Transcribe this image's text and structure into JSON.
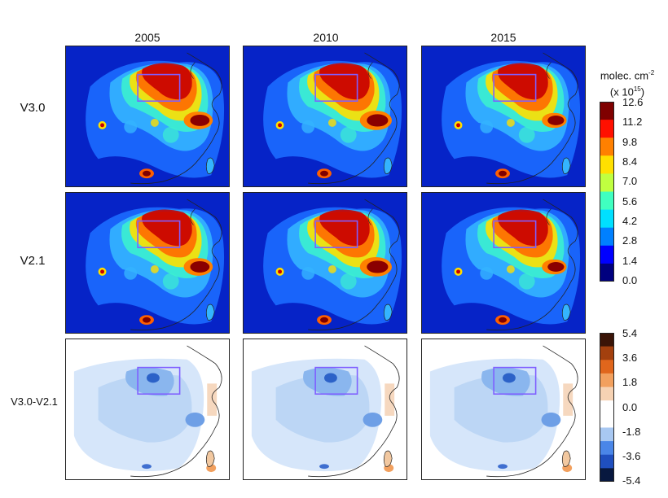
{
  "chart_data": {
    "type": "heatmap",
    "columns": [
      "2005",
      "2010",
      "2015"
    ],
    "rows": [
      "V3.0",
      "V2.1",
      "V3.0-V2.1"
    ],
    "colorbars": [
      {
        "title": "molec. cm",
        "title_sup": "-2",
        "subtitle": "(x 10",
        "subtitle_sup": "15",
        "subtitle_end": ")",
        "ticks": [
          "12.6",
          "11.2",
          "9.8",
          "8.4",
          "7.0",
          "5.6",
          "4.2",
          "2.8",
          "1.4",
          "0.0"
        ],
        "range": [
          0.0,
          12.6
        ],
        "colors": [
          "#00007f",
          "#0000ff",
          "#0080ff",
          "#00e0ff",
          "#40ffc0",
          "#c0ff40",
          "#ffe000",
          "#ff8000",
          "#ff1000",
          "#7f0000"
        ]
      },
      {
        "ticks": [
          "5.4",
          "3.6",
          "1.8",
          "0.0",
          "-1.8",
          "-3.6",
          "-5.4"
        ],
        "range": [
          -5.4,
          5.4
        ],
        "colors": [
          "#08183f",
          "#1f4fbf",
          "#4a86e8",
          "#a8c8f2",
          "#ffffff",
          "#ffffff",
          "#f6d2b3",
          "#f2a05e",
          "#e0661c",
          "#a3400e",
          "#3a1407"
        ]
      }
    ]
  }
}
